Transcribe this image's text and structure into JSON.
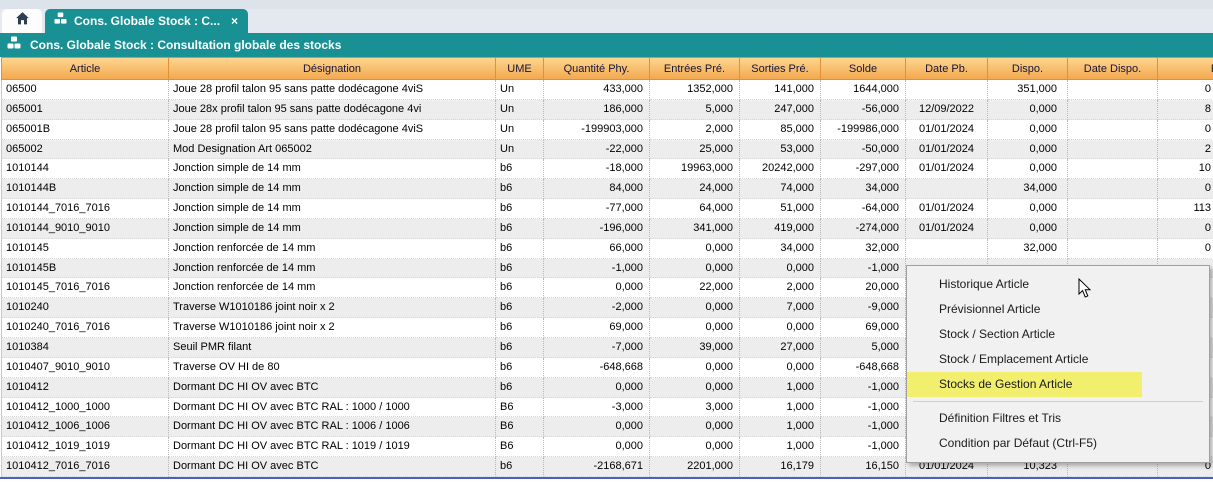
{
  "tab_bar": {
    "active_tab": {
      "label": "Cons. Globale Stock : C...",
      "close_icon": "×"
    }
  },
  "title_bar": {
    "title": "Cons. Globale Stock : Consultation globale des stocks"
  },
  "table": {
    "columns": [
      {
        "key": "article",
        "label": "Article"
      },
      {
        "key": "designation",
        "label": "Désignation"
      },
      {
        "key": "ume",
        "label": "UME"
      },
      {
        "key": "quantite-phy",
        "label": "Quantité Phy."
      },
      {
        "key": "entrees-pre",
        "label": "Entrées Pré."
      },
      {
        "key": "sorties-pre",
        "label": "Sorties Pré."
      },
      {
        "key": "solde",
        "label": "Solde"
      },
      {
        "key": "date-pb",
        "label": "Date Pb."
      },
      {
        "key": "dispo",
        "label": "Dispo."
      },
      {
        "key": "date-dispo",
        "label": "Date Dispo."
      },
      {
        "key": "pu",
        "label": "PU"
      }
    ],
    "rows": [
      [
        "06500",
        "Joue 28 profil talon 95 sans patte dodécagone 4viS",
        "Un",
        "433,000",
        "1352,000",
        "141,000",
        "1644,000",
        "",
        "351,000",
        "",
        "0"
      ],
      [
        "065001",
        "Joue 28x profil talon 95 sans patte dodécagone 4vi",
        "Un",
        "186,000",
        "5,000",
        "247,000",
        "-56,000",
        "12/09/2022",
        "0,000",
        "",
        "8"
      ],
      [
        "065001B",
        "Joue 28 profil talon 95 sans patte dodécagone 4viS",
        "Un",
        "-199903,000",
        "2,000",
        "85,000",
        "-199986,000",
        "01/01/2024",
        "0,000",
        "",
        "0"
      ],
      [
        "065002",
        "Mod Designation Art 065002",
        "Un",
        "-22,000",
        "25,000",
        "53,000",
        "-50,000",
        "01/01/2024",
        "0,000",
        "",
        "2"
      ],
      [
        "1010144",
        "Jonction simple de 14 mm",
        "b6",
        "-18,000",
        "19963,000",
        "20242,000",
        "-297,000",
        "01/01/2024",
        "0,000",
        "",
        "10"
      ],
      [
        "1010144B",
        "Jonction simple de 14 mm",
        "b6",
        "84,000",
        "24,000",
        "74,000",
        "34,000",
        "",
        "34,000",
        "",
        "0"
      ],
      [
        "1010144_7016_7016",
        "Jonction simple de 14 mm",
        "b6",
        "-77,000",
        "64,000",
        "51,000",
        "-64,000",
        "01/01/2024",
        "0,000",
        "",
        "113"
      ],
      [
        "1010144_9010_9010",
        "Jonction simple de 14 mm",
        "b6",
        "-196,000",
        "341,000",
        "419,000",
        "-274,000",
        "01/01/2024",
        "0,000",
        "",
        "0"
      ],
      [
        "1010145",
        "Jonction renforcée de 14 mm",
        "b6",
        "66,000",
        "0,000",
        "34,000",
        "32,000",
        "",
        "32,000",
        "",
        "0"
      ],
      [
        "1010145B",
        "Jonction renforcée de 14 mm",
        "b6",
        "-1,000",
        "0,000",
        "0,000",
        "-1,000",
        "",
        "",
        "",
        ""
      ],
      [
        "1010145_7016_7016",
        "Jonction renforcée de 14 mm",
        "b6",
        "0,000",
        "22,000",
        "2,000",
        "20,000",
        "",
        "",
        "",
        ""
      ],
      [
        "1010240",
        "Traverse W1010186 joint noir x 2",
        "b6",
        "-2,000",
        "0,000",
        "7,000",
        "-9,000",
        "",
        "",
        "",
        ""
      ],
      [
        "1010240_7016_7016",
        "Traverse W1010186 joint noir x 2",
        "b6",
        "69,000",
        "0,000",
        "0,000",
        "69,000",
        "",
        "",
        "",
        ""
      ],
      [
        "1010384",
        "Seuil PMR filant",
        "b6",
        "-7,000",
        "39,000",
        "27,000",
        "5,000",
        "",
        "",
        "",
        ""
      ],
      [
        "1010407_9010_9010",
        "Traverse OV HI de 80",
        "b6",
        "-648,668",
        "0,000",
        "0,000",
        "-648,668",
        "",
        "",
        "",
        ""
      ],
      [
        "1010412",
        "Dormant DC HI OV avec BTC",
        "b6",
        "0,000",
        "0,000",
        "1,000",
        "-1,000",
        "",
        "",
        "",
        ""
      ],
      [
        "1010412_1000_1000",
        "Dormant DC HI OV avec BTC RAL : 1000 / 1000",
        "B6",
        "-3,000",
        "3,000",
        "1,000",
        "-1,000",
        "",
        "",
        "",
        ""
      ],
      [
        "1010412_1006_1006",
        "Dormant DC HI OV avec BTC RAL : 1006 / 1006",
        "B6",
        "0,000",
        "0,000",
        "1,000",
        "-1,000",
        "",
        "",
        "",
        ""
      ],
      [
        "1010412_1019_1019",
        "Dormant DC HI OV avec BTC RAL : 1019 / 1019",
        "B6",
        "0,000",
        "0,000",
        "1,000",
        "-1,000",
        "",
        "",
        "",
        ""
      ],
      [
        "1010412_7016_7016",
        "Dormant DC HI OV avec BTC",
        "b6",
        "-2168,671",
        "2201,000",
        "16,179",
        "16,150",
        "01/01/2024",
        "10,323",
        "",
        "0"
      ]
    ]
  },
  "context_menu": {
    "items": [
      {
        "label": "Historique Article"
      },
      {
        "label": "Prévisionnel Article"
      },
      {
        "label": "Stock / Section Article"
      },
      {
        "label": "Stock / Emplacement Article"
      },
      {
        "label": "Stocks de Gestion Article",
        "highlighted": true
      },
      {
        "separator": true
      },
      {
        "label": "Définition Filtres et Tris"
      },
      {
        "label": "Condition par Défaut (Ctrl-F5)"
      }
    ]
  },
  "colors": {
    "teal": "#189094",
    "header_gradient_top": "#fdd58f",
    "header_gradient_bottom": "#f3a94f",
    "header_border": "#e09137",
    "menu_highlight": "#f2ee6e",
    "bottom_line": "#4a5fc4"
  }
}
